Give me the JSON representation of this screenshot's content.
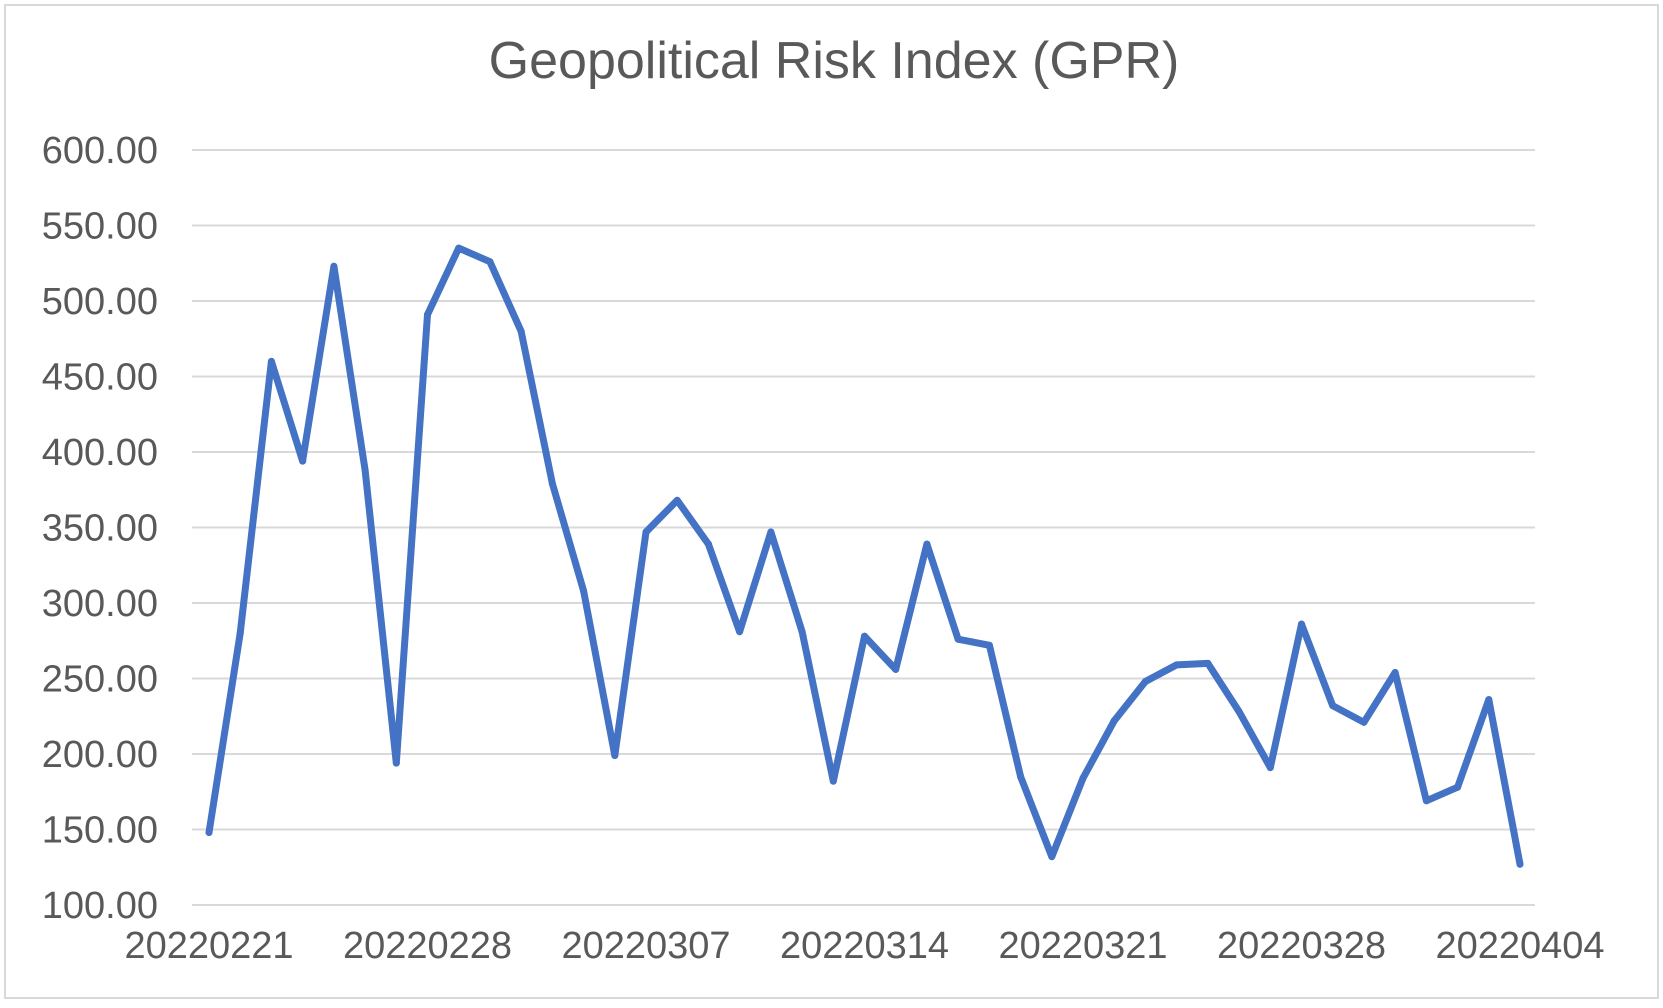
{
  "chart_data": {
    "type": "line",
    "title": "Geopolitical Risk Index (GPR)",
    "xlabel": "",
    "ylabel": "",
    "ylim": [
      100,
      600
    ],
    "y_ticks": [
      "600.00",
      "550.00",
      "500.00",
      "450.00",
      "400.00",
      "350.00",
      "300.00",
      "250.00",
      "200.00",
      "150.00",
      "100.00"
    ],
    "y_tick_values": [
      600,
      550,
      500,
      450,
      400,
      350,
      300,
      250,
      200,
      150,
      100
    ],
    "x_tick_labels": [
      "20220221",
      "20220228",
      "20220307",
      "20220314",
      "20220321",
      "20220328",
      "20220404"
    ],
    "x": [
      "20220221",
      "20220222",
      "20220223",
      "20220224",
      "20220225",
      "20220226",
      "20220227",
      "20220228",
      "20220301",
      "20220302",
      "20220303",
      "20220304",
      "20220305",
      "20220306",
      "20220307",
      "20220308",
      "20220309",
      "20220310",
      "20220311",
      "20220312",
      "20220313",
      "20220314",
      "20220315",
      "20220316",
      "20220317",
      "20220318",
      "20220319",
      "20220320",
      "20220321",
      "20220322",
      "20220323",
      "20220324",
      "20220325",
      "20220326",
      "20220327",
      "20220328",
      "20220329",
      "20220330",
      "20220331",
      "20220401",
      "20220402",
      "20220403",
      "20220404"
    ],
    "series": [
      {
        "values": [
          148,
          280,
          460,
          394,
          523,
          388,
          194,
          491,
          535,
          526,
          480,
          379,
          308,
          199,
          347,
          368,
          339,
          281,
          347,
          281,
          182,
          278,
          256,
          339,
          276,
          272,
          185,
          132,
          184,
          222,
          248,
          259,
          260,
          228,
          191,
          286,
          232,
          221,
          254,
          169,
          178,
          236,
          127
        ],
        "color": "#4472C4"
      }
    ],
    "grid": true,
    "legend": "none"
  },
  "colors": {
    "line": "#4472C4",
    "grid": "#D9D9D9",
    "text": "#595959",
    "frame": "#D9D9D9"
  }
}
